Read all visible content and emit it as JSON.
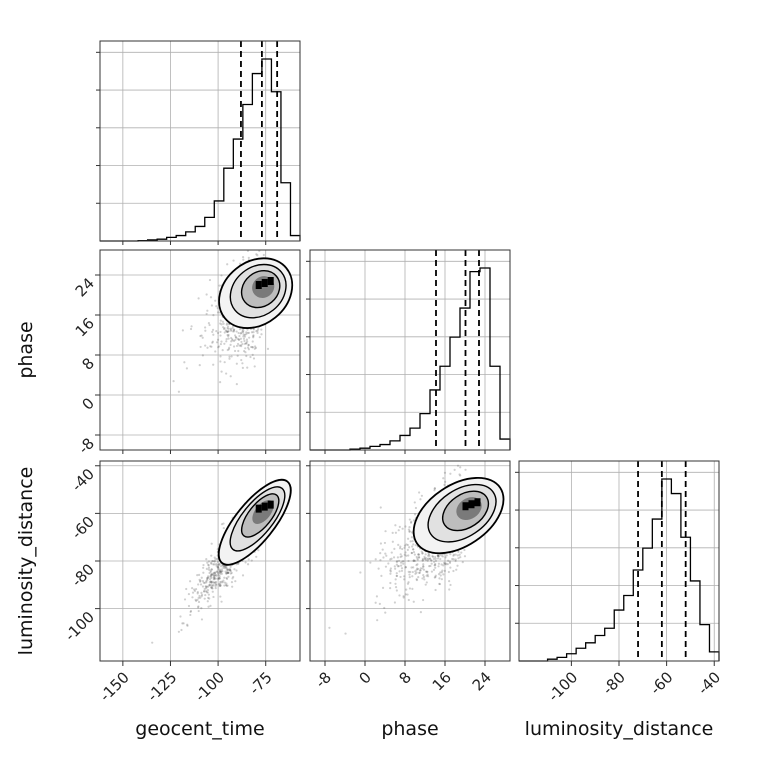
{
  "chart_data": {
    "type": "corner",
    "parameters": [
      "geocent_time",
      "phase",
      "luminosity_distance"
    ],
    "axis_labels": {
      "x": [
        "geocent_time",
        "phase",
        "luminosity_distance"
      ],
      "y_rows": [
        "",
        "phase",
        "luminosity_distance"
      ]
    },
    "ranges": {
      "geocent_time": [
        -162,
        -57
      ],
      "phase": [
        -11,
        29
      ],
      "luminosity_distance": [
        -122,
        -38
      ]
    },
    "x_ticks": {
      "geocent_time": [
        "-150",
        "-125",
        "-100",
        "-75"
      ],
      "phase": [
        "-8",
        "0",
        "8",
        "16",
        "24"
      ],
      "luminosity_distance": [
        "-100",
        "-80",
        "-60",
        "-40"
      ]
    },
    "y_ticks": {
      "phase": [
        "-8",
        "0",
        "8",
        "16",
        "24"
      ],
      "luminosity_distance": [
        "-100",
        "-80",
        "-60",
        "-40"
      ]
    },
    "tick_values": {
      "geocent_time": [
        -150,
        -125,
        -100,
        -75
      ],
      "phase": [
        -8,
        0,
        8,
        16,
        24
      ],
      "luminosity_distance": [
        -100,
        -80,
        -60,
        -40
      ]
    },
    "quantiles": {
      "geocent_time": [
        -88,
        -77,
        -69
      ],
      "phase": [
        14.2,
        20.1,
        22.8
      ],
      "luminosity_distance": [
        -72,
        -62,
        -52
      ]
    },
    "histograms": {
      "geocent_time": {
        "edges": [
          -162,
          -157,
          -152,
          -147,
          -142,
          -137,
          -132,
          -127,
          -122,
          -117,
          -112,
          -107,
          -102,
          -97,
          -92,
          -87,
          -82,
          -77,
          -72,
          -67,
          -62,
          -57
        ],
        "counts": [
          0,
          0,
          0,
          0,
          0.002,
          0.006,
          0.01,
          0.02,
          0.03,
          0.05,
          0.08,
          0.13,
          0.22,
          0.4,
          0.56,
          0.75,
          0.92,
          1.0,
          0.82,
          0.32,
          0.03
        ]
      },
      "phase": {
        "edges": [
          -11,
          -9,
          -7,
          -5,
          -3,
          -1,
          1,
          3,
          5,
          7,
          9,
          11,
          13,
          15,
          17,
          19,
          21,
          23,
          25,
          27,
          29
        ],
        "counts": [
          0,
          0,
          0,
          0,
          0.005,
          0.01,
          0.02,
          0.03,
          0.05,
          0.08,
          0.12,
          0.2,
          0.33,
          0.46,
          0.62,
          0.78,
          0.98,
          1.0,
          0.46,
          0.06
        ]
      },
      "luminosity_distance": {
        "edges": [
          -122,
          -118,
          -114,
          -110,
          -106,
          -102,
          -98,
          -94,
          -90,
          -86,
          -82,
          -78,
          -74,
          -70,
          -66,
          -62,
          -58,
          -54,
          -50,
          -46,
          -42,
          -38
        ],
        "counts": [
          0,
          0,
          0,
          0.01,
          0.02,
          0.04,
          0.07,
          0.1,
          0.14,
          0.18,
          0.28,
          0.36,
          0.5,
          0.62,
          0.78,
          1.0,
          0.92,
          0.68,
          0.44,
          0.2,
          0.05
        ]
      }
    },
    "joint": [
      {
        "x": "geocent_time",
        "y": "phase",
        "mean": [
          -78,
          20.5
        ],
        "sd": [
          11,
          5.5
        ],
        "rho": 0.62,
        "peak": [
          -75,
          22
        ]
      },
      {
        "x": "geocent_time",
        "y": "luminosity_distance",
        "mean": [
          -83,
          -67
        ],
        "sd": [
          12,
          13
        ],
        "rho": 0.92,
        "peak": [
          -75,
          -58
        ]
      },
      {
        "x": "phase",
        "y": "luminosity_distance",
        "mean": [
          18.5,
          -64
        ],
        "sd": [
          5.8,
          12
        ],
        "rho": 0.68,
        "peak": [
          21.5,
          -57
        ]
      }
    ],
    "grid": true,
    "legend": "none"
  }
}
